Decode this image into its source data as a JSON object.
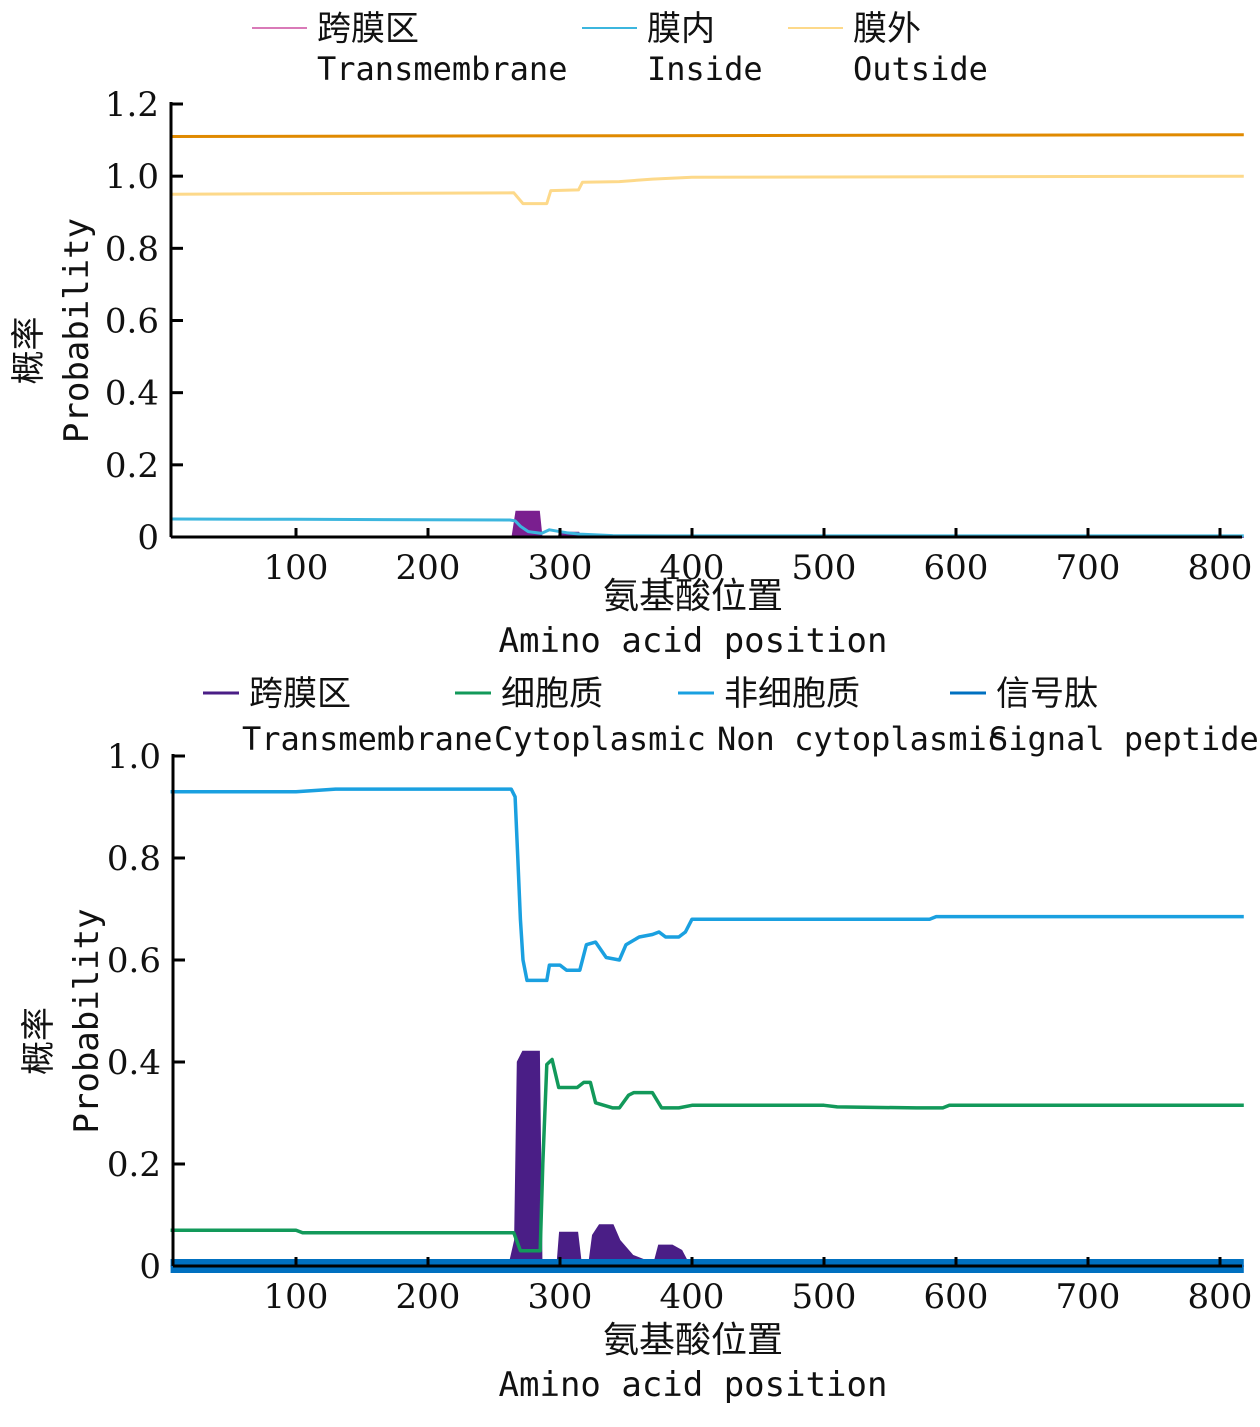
{
  "chart_data": [
    {
      "type": "line",
      "xlabel": [
        "氨基酸位置",
        "Amino acid position"
      ],
      "ylabel": [
        "概率",
        "Probability"
      ],
      "xlim": [
        5,
        818
      ],
      "ylim": [
        0,
        1.2
      ],
      "xticks": [
        100,
        200,
        300,
        400,
        500,
        600,
        700,
        800
      ],
      "yticks": [
        0,
        0.2,
        0.4,
        0.6,
        0.8,
        1.0,
        1.2
      ],
      "ytick_labels": [
        "0",
        "0.2",
        "0.4",
        "0.6",
        "0.8",
        "1.0",
        "1.2"
      ],
      "legend_placement": "top",
      "series": [
        {
          "name": "跨膜区 Transmembrane",
          "label_cn": "跨膜区",
          "label_en": "Transmembrane",
          "color": "#7a1f8f",
          "legend_color": "#d97ab8",
          "style": "area",
          "points": [
            [
              5,
              0
            ],
            [
              264,
              0
            ],
            [
              267,
              0.07
            ],
            [
              284,
              0.07
            ],
            [
              286,
              0
            ],
            [
              299,
              0
            ],
            [
              300,
              0.012
            ],
            [
              314,
              0.012
            ],
            [
              316,
              0
            ],
            [
              818,
              0
            ]
          ]
        },
        {
          "name": "膜内 Inside",
          "label_cn": "膜内",
          "label_en": "Inside",
          "color": "#3cb6de",
          "style": "line",
          "points": [
            [
              5,
              0.05
            ],
            [
              100,
              0.049
            ],
            [
              262,
              0.047
            ],
            [
              266,
              0.045
            ],
            [
              270,
              0.03
            ],
            [
              276,
              0.015
            ],
            [
              286,
              0.01
            ],
            [
              292,
              0.02
            ],
            [
              298,
              0.016
            ],
            [
              305,
              0.012
            ],
            [
              315,
              0.008
            ],
            [
              340,
              0.004
            ],
            [
              380,
              0.003
            ],
            [
              818,
              0.003
            ]
          ]
        },
        {
          "name": "膜外 Outside",
          "label_cn": "膜外",
          "label_en": "Outside",
          "color": "#fdd98a",
          "style": "line",
          "points": [
            [
              5,
              0.95
            ],
            [
              100,
              0.951
            ],
            [
              265,
              0.954
            ],
            [
              272,
              0.924
            ],
            [
              290,
              0.924
            ],
            [
              293,
              0.96
            ],
            [
              314,
              0.962
            ],
            [
              317,
              0.983
            ],
            [
              345,
              0.985
            ],
            [
              370,
              0.992
            ],
            [
              400,
              0.997
            ],
            [
              818,
              1.0
            ]
          ]
        },
        {
          "color": "#e08a00",
          "style": "line",
          "points": [
            [
              5,
              1.11
            ],
            [
              818,
              1.115
            ]
          ]
        }
      ]
    },
    {
      "type": "line",
      "xlabel": [
        "氨基酸位置",
        "Amino acid position"
      ],
      "ylabel": [
        "概率",
        "Probability"
      ],
      "xlim": [
        5,
        818
      ],
      "ylim": [
        0,
        1.0
      ],
      "xticks": [
        100,
        200,
        300,
        400,
        500,
        600,
        700,
        800
      ],
      "yticks": [
        0,
        0.2,
        0.4,
        0.6,
        0.8,
        1.0
      ],
      "ytick_labels": [
        "0",
        "0.2",
        "0.4",
        "0.6",
        "0.8",
        "1.0"
      ],
      "legend_placement": "top",
      "series": [
        {
          "name": "跨膜区 Transmembrane",
          "label_cn": "跨膜区",
          "label_en": "Transmembrane",
          "color": "#4a1e86",
          "style": "area",
          "points": [
            [
              5,
              0
            ],
            [
              100,
              0
            ],
            [
              104,
              0.006
            ],
            [
              125,
              0.006
            ],
            [
              130,
              0
            ],
            [
              240,
              0
            ],
            [
              262,
              0.005
            ],
            [
              266,
              0.05
            ],
            [
              268,
              0.4
            ],
            [
              272,
              0.42
            ],
            [
              284,
              0.42
            ],
            [
              286,
              0
            ],
            [
              298,
              0
            ],
            [
              300,
              0.065
            ],
            [
              313,
              0.065
            ],
            [
              316,
              0
            ],
            [
              322,
              0
            ],
            [
              325,
              0.06
            ],
            [
              330,
              0.08
            ],
            [
              340,
              0.08
            ],
            [
              345,
              0.05
            ],
            [
              355,
              0.02
            ],
            [
              365,
              0.01
            ],
            [
              372,
              0.01
            ],
            [
              375,
              0.04
            ],
            [
              385,
              0.04
            ],
            [
              392,
              0.03
            ],
            [
              398,
              0
            ],
            [
              414,
              0.005
            ],
            [
              435,
              0
            ],
            [
              480,
              0.005
            ],
            [
              495,
              0
            ],
            [
              505,
              0.005
            ],
            [
              555,
              0.005
            ],
            [
              560,
              0
            ],
            [
              570,
              0.006
            ],
            [
              590,
              0.006
            ],
            [
              595,
              0
            ],
            [
              818,
              0
            ]
          ]
        },
        {
          "name": "细胞质 Cytoplasmic",
          "label_cn": "细胞质",
          "label_en": "Cytoplasmic",
          "color": "#12995a",
          "style": "line",
          "points": [
            [
              5,
              0.07
            ],
            [
              100,
              0.07
            ],
            [
              105,
              0.065
            ],
            [
              265,
              0.065
            ],
            [
              270,
              0.03
            ],
            [
              285,
              0.03
            ],
            [
              287,
              0.2
            ],
            [
              290,
              0.395
            ],
            [
              294,
              0.405
            ],
            [
              299,
              0.35
            ],
            [
              313,
              0.35
            ],
            [
              318,
              0.36
            ],
            [
              323,
              0.36
            ],
            [
              327,
              0.32
            ],
            [
              340,
              0.31
            ],
            [
              345,
              0.31
            ],
            [
              352,
              0.335
            ],
            [
              356,
              0.34
            ],
            [
              370,
              0.34
            ],
            [
              377,
              0.31
            ],
            [
              390,
              0.31
            ],
            [
              400,
              0.315
            ],
            [
              500,
              0.315
            ],
            [
              510,
              0.312
            ],
            [
              570,
              0.31
            ],
            [
              590,
              0.31
            ],
            [
              595,
              0.315
            ],
            [
              818,
              0.315
            ]
          ]
        },
        {
          "name": "非细胞质 Non cytoplasmic",
          "label_cn": "非细胞质",
          "label_en": "Non cytoplasmic",
          "color": "#1aa0e0",
          "style": "line",
          "points": [
            [
              5,
              0.93
            ],
            [
              100,
              0.93
            ],
            [
              130,
              0.935
            ],
            [
              263,
              0.935
            ],
            [
              266,
              0.92
            ],
            [
              268,
              0.8
            ],
            [
              270,
              0.68
            ],
            [
              272,
              0.6
            ],
            [
              275,
              0.56
            ],
            [
              290,
              0.56
            ],
            [
              292,
              0.59
            ],
            [
              300,
              0.59
            ],
            [
              305,
              0.58
            ],
            [
              315,
              0.58
            ],
            [
              320,
              0.63
            ],
            [
              327,
              0.635
            ],
            [
              335,
              0.605
            ],
            [
              345,
              0.6
            ],
            [
              350,
              0.63
            ],
            [
              360,
              0.645
            ],
            [
              370,
              0.65
            ],
            [
              375,
              0.655
            ],
            [
              380,
              0.645
            ],
            [
              390,
              0.645
            ],
            [
              395,
              0.655
            ],
            [
              400,
              0.68
            ],
            [
              580,
              0.68
            ],
            [
              585,
              0.685
            ],
            [
              818,
              0.685
            ]
          ]
        },
        {
          "name": "信号肽 Signal peptide",
          "label_cn": "信号肽",
          "label_en": "Signal peptide",
          "color": "#0070c0",
          "style": "thick",
          "points": [
            [
              5,
              0
            ],
            [
              818,
              0
            ]
          ]
        }
      ]
    }
  ]
}
